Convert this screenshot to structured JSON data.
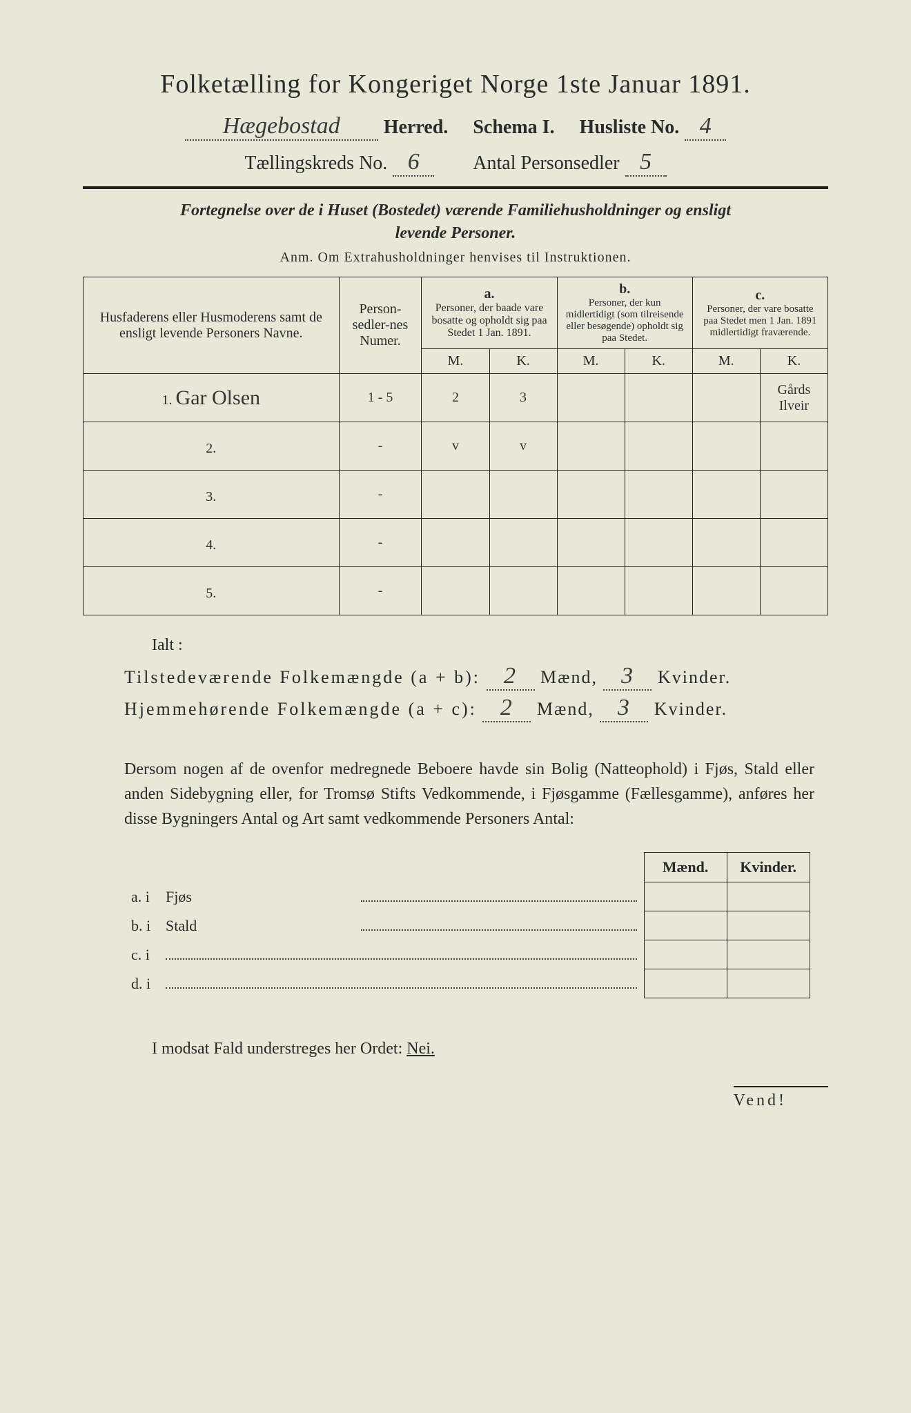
{
  "header": {
    "title": "Folketælling for Kongeriget Norge 1ste Januar 1891.",
    "herred_value": "Hægebostad",
    "herred_label": "Herred.",
    "schema_label": "Schema I.",
    "husliste_label": "Husliste No.",
    "husliste_value": "4",
    "kreds_label": "Tællingskreds No.",
    "kreds_value": "6",
    "antal_label": "Antal Personsedler",
    "antal_value": "5"
  },
  "subtitle": {
    "line1": "Fortegnelse over de i Huset (Bostedet) værende Familiehusholdninger og ensligt",
    "line2": "levende Personer.",
    "anm": "Anm.  Om Extrahusholdninger henvises til Instruktionen."
  },
  "columns": {
    "name": "Husfaderens eller Husmoderens samt de ensligt levende Personers Navne.",
    "num": "Person-sedler-nes Numer.",
    "a_label": "a.",
    "a_text": "Personer, der baade vare bosatte og opholdt sig paa Stedet 1 Jan. 1891.",
    "b_label": "b.",
    "b_text": "Personer, der kun midlertidigt (som tilreisende eller besøgende) opholdt sig paa Stedet.",
    "c_label": "c.",
    "c_text": "Personer, der vare bosatte paa Stedet men 1 Jan. 1891 midlertidigt fraværende.",
    "M": "M.",
    "K": "K."
  },
  "rows": [
    {
      "n": "1.",
      "name": "Gar Olsen",
      "num": "1 - 5",
      "aM": "2",
      "aK": "3",
      "bM": "",
      "bK": "",
      "cM": "",
      "cK": "Gårds Ilveir"
    },
    {
      "n": "2.",
      "name": "",
      "num": "-",
      "aM": "v",
      "aK": "v",
      "bM": "",
      "bK": "",
      "cM": "",
      "cK": ""
    },
    {
      "n": "3.",
      "name": "",
      "num": "-",
      "aM": "",
      "aK": "",
      "bM": "",
      "bK": "",
      "cM": "",
      "cK": ""
    },
    {
      "n": "4.",
      "name": "",
      "num": "-",
      "aM": "",
      "aK": "",
      "bM": "",
      "bK": "",
      "cM": "",
      "cK": ""
    },
    {
      "n": "5.",
      "name": "",
      "num": "-",
      "aM": "",
      "aK": "",
      "bM": "",
      "bK": "",
      "cM": "",
      "cK": ""
    }
  ],
  "totals": {
    "ialt": "Ialt :",
    "line1_label": "Tilstedeværende Folkemængde (a + b):",
    "line1_m": "2",
    "line1_k": "3",
    "line2_label": "Hjemmehørende Folkemængde (a + c):",
    "line2_m": "2",
    "line2_k": "3",
    "maend": "Mænd,",
    "kvinder": "Kvinder."
  },
  "para": "Dersom nogen af de ovenfor medregnede Beboere havde sin Bolig (Natteophold) i Fjøs, Stald eller anden Sidebygning eller, for Tromsø Stifts Vedkommende, i Fjøsgamme (Fællesgamme), anføres her disse Bygningers Antal og Art samt vedkommende Personers Antal:",
  "side": {
    "maend": "Mænd.",
    "kvinder": "Kvinder.",
    "a": "a.  i",
    "a_label": "Fjøs",
    "b": "b.  i",
    "b_label": "Stald",
    "c": "c.  i",
    "d": "d.  i"
  },
  "nei": "I modsat Fald understreges her Ordet: ",
  "nei_word": "Nei.",
  "vend": "Vend!"
}
